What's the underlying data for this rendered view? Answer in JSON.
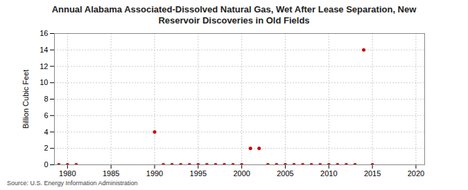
{
  "chart_data": {
    "type": "scatter",
    "title": "Annual Alabama Associated-Dissolved Natural Gas, Wet After Lease Separation, New Reservoir Discoveries in Old Fields",
    "y_label": "Billion Cubic Feet",
    "caption": "Source: U.S. Energy Information Administration",
    "x": [
      1979,
      1980,
      1981,
      1990,
      1991,
      1992,
      1993,
      1994,
      1995,
      1996,
      1997,
      1998,
      1999,
      2000,
      2001,
      2002,
      2003,
      2004,
      2005,
      2006,
      2007,
      2008,
      2009,
      2010,
      2011,
      2012,
      2013,
      2014,
      2015
    ],
    "values": [
      0,
      0,
      0,
      4,
      0,
      0,
      0,
      0,
      0,
      0,
      0,
      0,
      0,
      0,
      2,
      2,
      0,
      0,
      0,
      0,
      0,
      0,
      0,
      0,
      0,
      0,
      0,
      14,
      0
    ],
    "color": "#cc0000",
    "marker": "circle",
    "xlim": [
      1978.5,
      2021
    ],
    "xticks": [
      1980,
      1985,
      1990,
      1995,
      2000,
      2005,
      2010,
      2015,
      2020
    ],
    "ylim": [
      0,
      16
    ],
    "yticks": [
      0,
      2,
      4,
      6,
      8,
      10,
      12,
      14,
      16
    ],
    "grid": true
  }
}
